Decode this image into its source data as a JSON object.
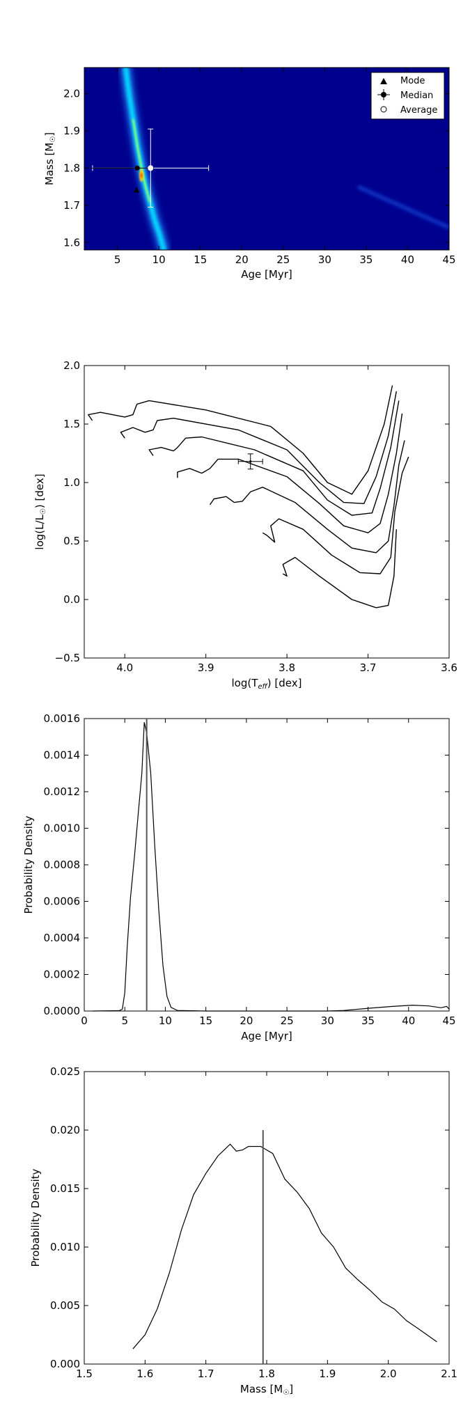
{
  "chart_data": [
    {
      "type": "heatmap",
      "xlabel": "Age [Myr]",
      "ylabel": "Mass [M$_\\odot$]",
      "ylabel_main": "Mass [M",
      "ylabel_sub": "☉",
      "ylabel_end": "]",
      "xlim": [
        1,
        45
      ],
      "ylim": [
        1.58,
        2.07
      ],
      "xticks": [
        5,
        10,
        15,
        20,
        25,
        30,
        35,
        40,
        45
      ],
      "yticks": [
        1.6,
        1.7,
        1.8,
        1.9,
        2.0
      ],
      "xtick_labels": [
        "5",
        "10",
        "15",
        "20",
        "25",
        "30",
        "35",
        "40",
        "45"
      ],
      "ytick_labels": [
        "1.6",
        "1.7",
        "1.8",
        "1.9",
        "2.0"
      ],
      "background_color": "#00008f",
      "ridge": [
        [
          6.0,
          2.07
        ],
        [
          6.4,
          2.0
        ],
        [
          6.9,
          1.93
        ],
        [
          7.4,
          1.86
        ],
        [
          7.9,
          1.8
        ],
        [
          8.4,
          1.75
        ],
        [
          8.9,
          1.71
        ],
        [
          9.5,
          1.66
        ],
        [
          10.1,
          1.62
        ],
        [
          10.6,
          1.58
        ]
      ],
      "peak": {
        "age": 7.9,
        "mass": 1.78
      },
      "secondary_ridge": [
        [
          34,
          1.75
        ],
        [
          38,
          1.71
        ],
        [
          42,
          1.67
        ],
        [
          45,
          1.64
        ]
      ],
      "points": {
        "mode": {
          "age": 7.3,
          "mass": 1.74
        },
        "median": {
          "age": 7.4,
          "mass": 1.8,
          "xerr": [
            5.6,
            2.0
          ],
          "yerr": [
            0.0,
            0.0
          ]
        },
        "average": {
          "age": 9.0,
          "mass": 1.8,
          "xerr": [
            7.0,
            7.0
          ],
          "yerr": [
            0.105,
            0.105
          ]
        }
      },
      "legend": {
        "placement": "top-right",
        "entries": [
          "Mode",
          "Median",
          "Average"
        ]
      }
    },
    {
      "type": "line",
      "xlabel_main": "log(T",
      "xlabel_sub": "eff",
      "xlabel_end": ") [dex]",
      "ylabel_main": "log(L/L",
      "ylabel_sub": "☉",
      "ylabel_end": ") [dex]",
      "xlim": [
        4.05,
        3.6
      ],
      "ylim": [
        -0.5,
        2.0
      ],
      "xticks": [
        4.0,
        3.9,
        3.8,
        3.7,
        3.6
      ],
      "yticks": [
        -0.5,
        0.0,
        0.5,
        1.0,
        1.5,
        2.0
      ],
      "xtick_labels": [
        "4.0",
        "3.9",
        "3.8",
        "3.7",
        "3.6"
      ],
      "ytick_labels": [
        "−0.5",
        "0.0",
        "0.5",
        "1.0",
        "1.5",
        "2.0"
      ],
      "series": [
        {
          "points": [
            [
              4.04,
              1.53
            ],
            [
              4.045,
              1.58
            ],
            [
              4.03,
              1.6
            ],
            [
              4.0,
              1.56
            ],
            [
              3.99,
              1.58
            ],
            [
              3.985,
              1.67
            ],
            [
              3.97,
              1.7
            ],
            [
              3.9,
              1.62
            ],
            [
              3.82,
              1.48
            ],
            [
              3.78,
              1.25
            ],
            [
              3.75,
              1.0
            ],
            [
              3.72,
              0.9
            ],
            [
              3.7,
              1.1
            ],
            [
              3.68,
              1.5
            ],
            [
              3.67,
              1.83
            ]
          ]
        },
        {
          "points": [
            [
              4.0,
              1.38
            ],
            [
              4.005,
              1.43
            ],
            [
              3.99,
              1.47
            ],
            [
              3.975,
              1.43
            ],
            [
              3.965,
              1.45
            ],
            [
              3.96,
              1.53
            ],
            [
              3.94,
              1.55
            ],
            [
              3.86,
              1.45
            ],
            [
              3.8,
              1.28
            ],
            [
              3.76,
              1.0
            ],
            [
              3.73,
              0.83
            ],
            [
              3.705,
              0.82
            ],
            [
              3.69,
              1.05
            ],
            [
              3.675,
              1.4
            ],
            [
              3.665,
              1.78
            ]
          ]
        },
        {
          "points": [
            [
              3.965,
              1.23
            ],
            [
              3.97,
              1.28
            ],
            [
              3.955,
              1.3
            ],
            [
              3.94,
              1.27
            ],
            [
              3.935,
              1.3
            ],
            [
              3.925,
              1.38
            ],
            [
              3.905,
              1.39
            ],
            [
              3.84,
              1.28
            ],
            [
              3.78,
              1.1
            ],
            [
              3.75,
              0.85
            ],
            [
              3.72,
              0.72
            ],
            [
              3.695,
              0.74
            ],
            [
              3.685,
              0.95
            ],
            [
              3.672,
              1.3
            ],
            [
              3.662,
              1.7
            ]
          ]
        },
        {
          "points": [
            [
              3.935,
              1.04
            ],
            [
              3.935,
              1.09
            ],
            [
              3.92,
              1.12
            ],
            [
              3.905,
              1.08
            ],
            [
              3.895,
              1.12
            ],
            [
              3.885,
              1.2
            ],
            [
              3.86,
              1.2
            ],
            [
              3.8,
              1.05
            ],
            [
              3.76,
              0.82
            ],
            [
              3.73,
              0.63
            ],
            [
              3.7,
              0.57
            ],
            [
              3.685,
              0.65
            ],
            [
              3.675,
              0.9
            ],
            [
              3.665,
              1.25
            ],
            [
              3.658,
              1.59
            ]
          ]
        },
        {
          "points": [
            [
              3.895,
              0.81
            ],
            [
              3.89,
              0.86
            ],
            [
              3.875,
              0.88
            ],
            [
              3.865,
              0.83
            ],
            [
              3.855,
              0.84
            ],
            [
              3.845,
              0.92
            ],
            [
              3.83,
              0.96
            ],
            [
              3.79,
              0.83
            ],
            [
              3.75,
              0.6
            ],
            [
              3.72,
              0.44
            ],
            [
              3.69,
              0.4
            ],
            [
              3.675,
              0.5
            ],
            [
              3.668,
              0.8
            ],
            [
              3.662,
              1.15
            ],
            [
              3.655,
              1.36
            ]
          ]
        },
        {
          "points": [
            [
              3.83,
              0.57
            ],
            [
              3.825,
              0.55
            ],
            [
              3.815,
              0.49
            ],
            [
              3.82,
              0.63
            ],
            [
              3.81,
              0.69
            ],
            [
              3.78,
              0.6
            ],
            [
              3.745,
              0.38
            ],
            [
              3.71,
              0.23
            ],
            [
              3.685,
              0.22
            ],
            [
              3.672,
              0.36
            ],
            [
              3.667,
              0.75
            ],
            [
              3.658,
              1.08
            ],
            [
              3.65,
              1.22
            ]
          ]
        },
        {
          "points": [
            [
              3.805,
              0.22
            ],
            [
              3.8,
              0.2
            ],
            [
              3.805,
              0.3
            ],
            [
              3.79,
              0.36
            ],
            [
              3.76,
              0.2
            ],
            [
              3.72,
              0.0
            ],
            [
              3.69,
              -0.07
            ],
            [
              3.675,
              -0.05
            ],
            [
              3.668,
              0.2
            ],
            [
              3.665,
              0.6
            ]
          ]
        }
      ],
      "datapoint": {
        "x": 3.845,
        "y": 1.18,
        "xerr": 0.015,
        "yerr": 0.065
      }
    },
    {
      "type": "line",
      "xlabel": "Age [Myr]",
      "ylabel": "Probability Density",
      "xlim": [
        0,
        45
      ],
      "ylim": [
        0,
        0.0016
      ],
      "xticks": [
        0,
        5,
        10,
        15,
        20,
        25,
        30,
        35,
        40,
        45
      ],
      "yticks": [
        0,
        0.0002,
        0.0004,
        0.0006,
        0.0008,
        0.001,
        0.0012,
        0.0014,
        0.0016
      ],
      "xtick_labels": [
        "0",
        "5",
        "10",
        "15",
        "20",
        "25",
        "30",
        "35",
        "40",
        "45"
      ],
      "ytick_labels": [
        "0.0000",
        "0.0002",
        "0.0004",
        "0.0006",
        "0.0008",
        "0.0010",
        "0.0012",
        "0.0014",
        "0.0016"
      ],
      "series": [
        {
          "points": [
            [
              1.0,
              0.0
            ],
            [
              4.3,
              2e-06
            ],
            [
              4.7,
              1e-05
            ],
            [
              5.0,
              0.0001
            ],
            [
              5.3,
              0.00035
            ],
            [
              5.7,
              0.00062
            ],
            [
              6.2,
              0.00085
            ],
            [
              6.7,
              0.0011
            ],
            [
              7.1,
              0.0013
            ],
            [
              7.4,
              0.00158
            ],
            [
              7.7,
              0.00152
            ],
            [
              8.2,
              0.0013
            ],
            [
              8.7,
              0.0009
            ],
            [
              9.2,
              0.00055
            ],
            [
              9.7,
              0.00025
            ],
            [
              10.2,
              8e-05
            ],
            [
              10.7,
              2e-05
            ],
            [
              11.5,
              3e-06
            ],
            [
              15,
              0.0
            ],
            [
              25,
              0.0
            ],
            [
              30,
              0.0
            ],
            [
              32,
              3e-06
            ],
            [
              35,
              1.5e-05
            ],
            [
              38,
              2.5e-05
            ],
            [
              40.5,
              3.2e-05
            ],
            [
              42.5,
              2.8e-05
            ],
            [
              44,
              1.8e-05
            ],
            [
              44.7,
              2.5e-05
            ],
            [
              45,
              1e-05
            ]
          ]
        }
      ],
      "vline": {
        "x": 7.7
      }
    },
    {
      "type": "line",
      "xlabel_main": "Mass [M",
      "xlabel_sub": "☉",
      "xlabel_end": "]",
      "ylabel": "Probability Density",
      "xlim": [
        1.5,
        2.1
      ],
      "ylim": [
        0,
        0.025
      ],
      "xticks": [
        1.5,
        1.6,
        1.7,
        1.8,
        1.9,
        2.0,
        2.1
      ],
      "yticks": [
        0,
        0.005,
        0.01,
        0.015,
        0.02,
        0.025
      ],
      "xtick_labels": [
        "1.5",
        "1.6",
        "1.7",
        "1.8",
        "1.9",
        "2.0",
        "2.1"
      ],
      "ytick_labels": [
        "0.000",
        "0.005",
        "0.010",
        "0.015",
        "0.020",
        "0.025"
      ],
      "series": [
        {
          "points": [
            [
              1.58,
              0.0013
            ],
            [
              1.6,
              0.0025
            ],
            [
              1.62,
              0.0047
            ],
            [
              1.64,
              0.0078
            ],
            [
              1.66,
              0.0115
            ],
            [
              1.68,
              0.0145
            ],
            [
              1.7,
              0.0163
            ],
            [
              1.72,
              0.0178
            ],
            [
              1.74,
              0.0188
            ],
            [
              1.75,
              0.0182
            ],
            [
              1.76,
              0.0183
            ],
            [
              1.77,
              0.0186
            ],
            [
              1.79,
              0.0186
            ],
            [
              1.81,
              0.018
            ],
            [
              1.83,
              0.0158
            ],
            [
              1.85,
              0.0147
            ],
            [
              1.87,
              0.0133
            ],
            [
              1.89,
              0.0112
            ],
            [
              1.91,
              0.01
            ],
            [
              1.93,
              0.0082
            ],
            [
              1.95,
              0.0072
            ],
            [
              1.97,
              0.0063
            ],
            [
              1.99,
              0.0053
            ],
            [
              2.01,
              0.0047
            ],
            [
              2.03,
              0.0037
            ],
            [
              2.05,
              0.003
            ],
            [
              2.08,
              0.0019
            ]
          ]
        }
      ],
      "vline": {
        "x": 1.794,
        "y": 0.02
      }
    }
  ]
}
